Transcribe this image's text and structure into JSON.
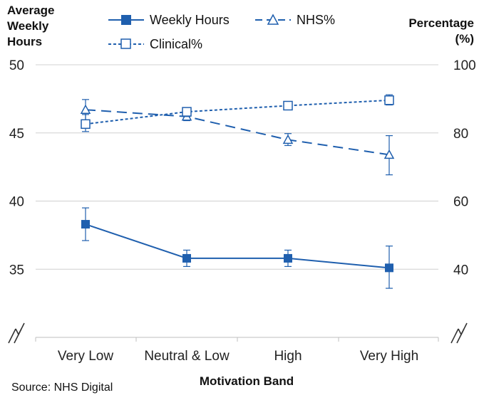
{
  "chart_data": {
    "type": "line",
    "categories": [
      "Very Low",
      "Neutral & Low",
      "High",
      "Very High"
    ],
    "xlabel": "Motivation Band",
    "left_axis": {
      "title_lines": [
        "Average",
        "Weekly",
        "Hours"
      ],
      "range": [
        30,
        50
      ],
      "ticks": [
        35,
        40,
        45,
        50
      ],
      "axis_break": true
    },
    "right_axis": {
      "title_lines": [
        "Percentage",
        "(%)"
      ],
      "range": [
        20,
        100
      ],
      "ticks": [
        40,
        60,
        80,
        100
      ],
      "axis_break": true
    },
    "series": [
      {
        "name": "Weekly Hours",
        "axis": "left",
        "color": "#1f5fae",
        "line": "solid",
        "marker": "filled-square",
        "values": [
          38.3,
          35.8,
          35.8,
          35.1
        ],
        "error_low": [
          37.1,
          35.2,
          35.2,
          33.6
        ],
        "error_high": [
          39.5,
          36.4,
          36.4,
          36.7
        ]
      },
      {
        "name": "NHS%",
        "axis": "right",
        "color": "#1f5fae",
        "line": "long-dash",
        "marker": "open-triangle",
        "values": [
          86.8,
          84.8,
          78.0,
          73.6
        ],
        "error_low": [
          83.6,
          83.6,
          76.3,
          67.7
        ],
        "error_high": [
          89.8,
          86.2,
          79.8,
          79.2
        ]
      },
      {
        "name": "Clinical%",
        "axis": "right",
        "color": "#1f5fae",
        "line": "short-dash",
        "marker": "open-square",
        "values": [
          82.6,
          86.2,
          88.0,
          89.6
        ],
        "error_low": [
          80.4,
          84.8,
          87.2,
          88.2
        ],
        "error_high": [
          85.4,
          87.2,
          88.8,
          91.2
        ]
      }
    ],
    "grid": "horizontal",
    "legend_position": "top-center"
  },
  "source_text": "Source: NHS Digital"
}
